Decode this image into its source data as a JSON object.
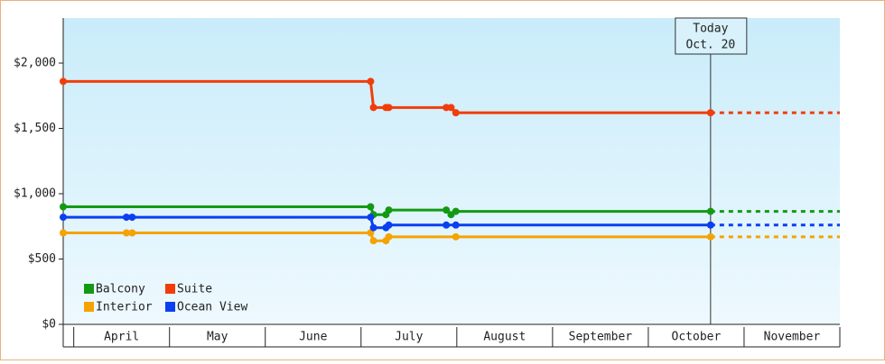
{
  "chart_data": {
    "type": "line",
    "categories": [
      "April",
      "May",
      "June",
      "July",
      "August",
      "September",
      "October",
      "November"
    ],
    "xlim": [
      -0.11,
      8.0
    ],
    "xticks": [
      0,
      1,
      2,
      3,
      4,
      5,
      6,
      7,
      8
    ],
    "ylim": [
      0,
      2345
    ],
    "yticks": [
      {
        "value": 0,
        "label": "$0"
      },
      {
        "value": 500,
        "label": "$500"
      },
      {
        "value": 1000,
        "label": "$1,000"
      },
      {
        "value": 1500,
        "label": "$1,500"
      },
      {
        "value": 2000,
        "label": "$2,000"
      }
    ],
    "annotation": {
      "title": "Today",
      "date": "Oct. 20",
      "x": 6.65
    },
    "series": [
      {
        "name": "Balcony",
        "color": "#139a13",
        "x": [
          -0.11,
          3.1,
          3.13,
          3.26,
          3.29,
          3.89,
          3.94,
          3.99,
          6.65
        ],
        "values": [
          900,
          900,
          840,
          840,
          875,
          875,
          840,
          865,
          865
        ]
      },
      {
        "name": "Suite",
        "color": "#f23d0b",
        "x": [
          -0.11,
          3.1,
          3.13,
          3.26,
          3.29,
          3.89,
          3.94,
          3.99,
          6.65
        ],
        "values": [
          1860,
          1860,
          1660,
          1660,
          1660,
          1660,
          1660,
          1620,
          1620
        ]
      },
      {
        "name": "Interior",
        "color": "#f5a300",
        "x": [
          -0.11,
          0.55,
          0.61,
          3.1,
          3.13,
          3.26,
          3.29,
          3.99,
          6.65
        ],
        "values": [
          700,
          700,
          700,
          700,
          640,
          640,
          670,
          670,
          670
        ]
      },
      {
        "name": "Ocean View",
        "color": "#0b3ff0",
        "x": [
          -0.11,
          0.55,
          0.61,
          3.1,
          3.13,
          3.26,
          3.29,
          3.89,
          3.99,
          6.65
        ],
        "values": [
          820,
          820,
          820,
          820,
          740,
          740,
          760,
          760,
          760,
          760
        ]
      }
    ],
    "legend": "lower left",
    "forecast": "dashed"
  }
}
